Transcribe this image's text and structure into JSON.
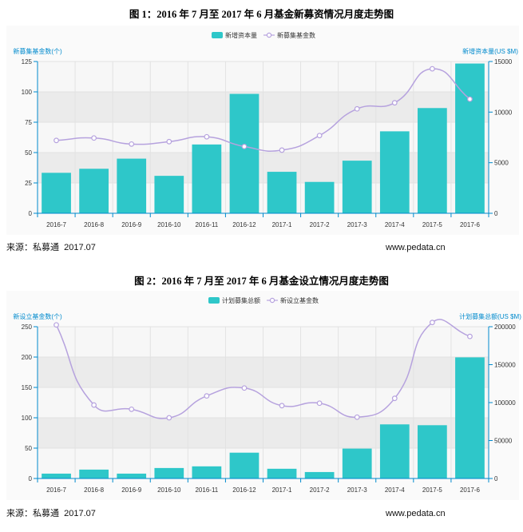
{
  "figures": [
    {
      "source": "来源：私募通  2017.07",
      "website": "www.pedata.cn"
    },
    {
      "source": "来源：私募通  2017.07",
      "website": "www.pedata.cn"
    }
  ],
  "colors": {
    "bar": "#2ec7c9",
    "line": "#b6a2de",
    "axis": "#008acd"
  },
  "chart_data": [
    {
      "type": "bar",
      "title": "图 1：2016 年 7 月至 2017 年 6 月基金新募资情况月度走势图",
      "categories": [
        "2016-7",
        "2016-8",
        "2016-9",
        "2016-10",
        "2016-11",
        "2016-12",
        "2017-1",
        "2017-2",
        "2017-3",
        "2017-4",
        "2017-5",
        "2017-6"
      ],
      "series": [
        {
          "name": "新增资本量",
          "type": "bar",
          "y_axis": "right",
          "values": [
            4000,
            4400,
            5400,
            3700,
            6800,
            11800,
            4100,
            3100,
            5200,
            8100,
            10400,
            14800
          ]
        },
        {
          "name": "新募集基金数",
          "type": "line",
          "smooth": true,
          "y_axis": "left",
          "values": [
            60,
            62,
            57,
            59,
            63,
            55,
            52,
            64,
            86,
            91,
            119,
            94
          ]
        }
      ],
      "ylabel": "新募集基金数(个)",
      "ylabel_right": "新增资本量(US $M)",
      "ylim": [
        0,
        125
      ],
      "yticks": [
        0,
        25,
        50,
        75,
        100,
        125
      ],
      "ylim_right": [
        0,
        15000
      ],
      "yticks_right": [
        0,
        5000,
        10000,
        15000
      ],
      "grid": true,
      "legend": "top-center"
    },
    {
      "type": "bar",
      "title": "图 2：2016 年 7 月至 2017 年 6 月基金设立情况月度走势图",
      "categories": [
        "2016-7",
        "2016-8",
        "2016-9",
        "2016-10",
        "2016-11",
        "2016-12",
        "2017-1",
        "2017-2",
        "2017-3",
        "2017-4",
        "2017-5",
        "2017-6"
      ],
      "series": [
        {
          "name": "计划募集总额",
          "type": "bar",
          "y_axis": "right",
          "values": [
            6400,
            11700,
            6400,
            13800,
            16000,
            34000,
            12800,
            8500,
            39400,
            71300,
            70200,
            159600
          ]
        },
        {
          "name": "新设立基金数",
          "type": "line",
          "smooth": true,
          "y_axis": "left",
          "values": [
            253,
            121,
            114,
            100,
            136,
            149,
            120,
            124,
            101,
            132,
            257,
            234
          ]
        }
      ],
      "ylabel": "新设立基金数(个)",
      "ylabel_right": "计划募集总额(US $M)",
      "ylim": [
        0,
        250
      ],
      "yticks": [
        0,
        50,
        100,
        150,
        200,
        250
      ],
      "ylim_right": [
        0,
        200000
      ],
      "yticks_right": [
        0,
        50000,
        100000,
        150000,
        200000
      ],
      "grid": true,
      "legend": "top-center"
    }
  ]
}
